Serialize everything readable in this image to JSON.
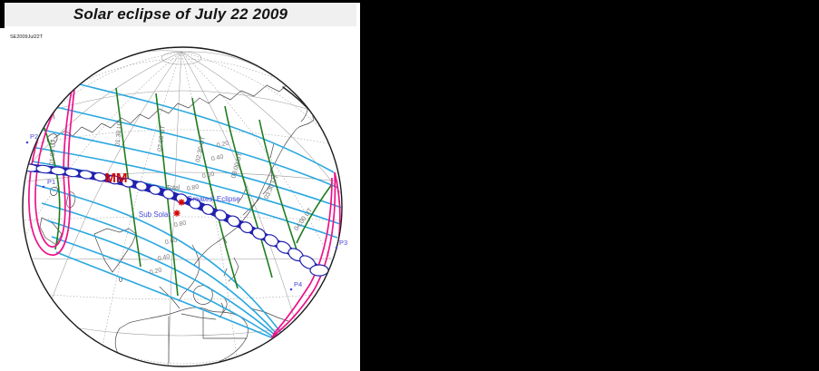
{
  "title": "Solar eclipse of July 22 2009",
  "code": "SE2009Jul22T",
  "eclipse_map": {
    "central_line_label": "MM",
    "total_label": "Total",
    "greatest_eclipse_label": "Greatest Eclipse",
    "sub_solar_label": "Sub Solar",
    "contact_points": [
      "P1",
      "P2",
      "P3",
      "P4"
    ],
    "upper_magnitudes": [
      "0.20",
      "0.40",
      "0.60",
      "0.80"
    ],
    "lower_magnitudes": [
      "0.80",
      "0.60",
      "0.40",
      "0.20"
    ],
    "time_contours": [
      "01:00 UT",
      "01:30 UT",
      "02:00 UT",
      "02:30 UT",
      "03:00 UT",
      "03:30 UT",
      "04:00 UT"
    ],
    "colors": {
      "magnitude_contour": "#2aa8e0",
      "time_contour": "#1e7d1e",
      "penumbra_limit": "#ee1289",
      "umbra_path": "#2121af",
      "labels_blue": "#4848d8",
      "labels_gray": "#7a7a7a",
      "highlight_red": "#d40000",
      "title_band": "#f0f0f0"
    }
  }
}
